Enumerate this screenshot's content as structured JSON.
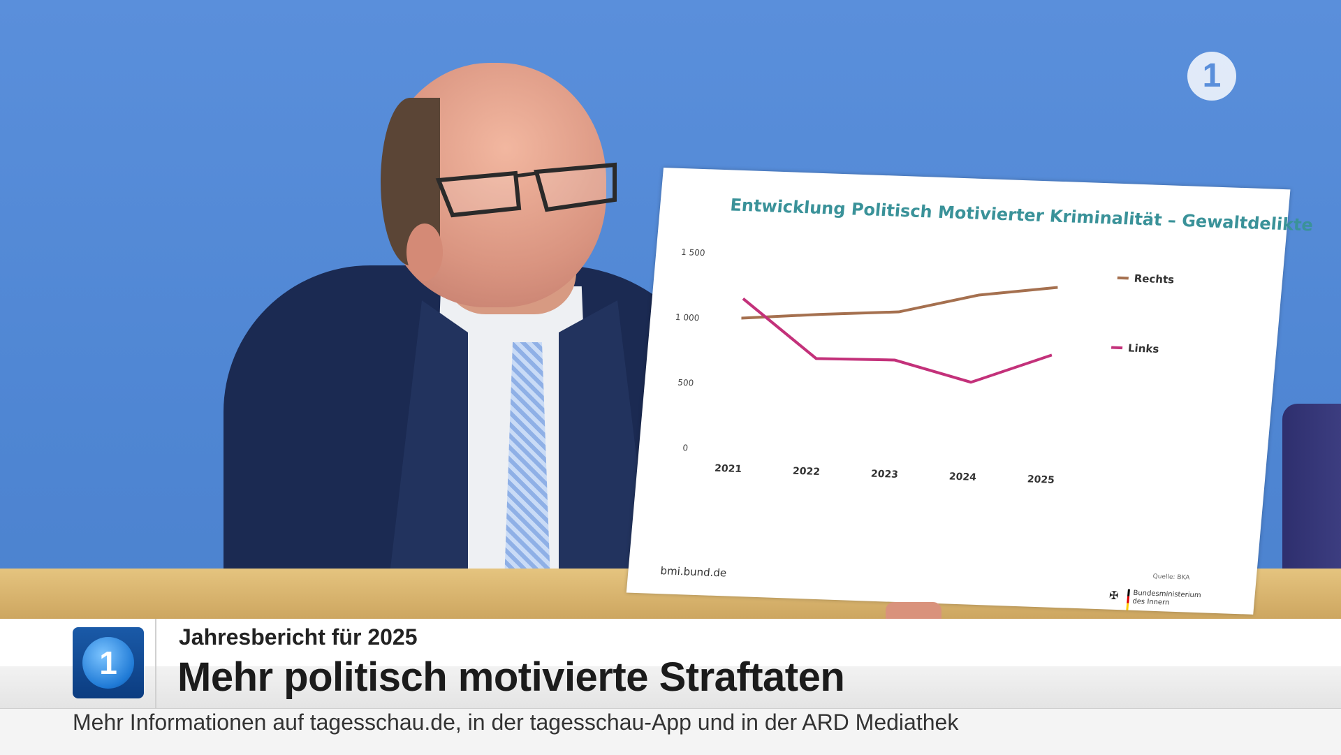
{
  "chart_data": {
    "type": "line",
    "title": "Entwicklung Politisch Motivierter Kriminalität – Gewaltdelikte",
    "x": [
      "2021",
      "2022",
      "2023",
      "2024",
      "2025"
    ],
    "ylim": [
      0,
      1500
    ],
    "yticks": [
      "1 500",
      "1 000",
      "500",
      "0"
    ],
    "grid": false,
    "legend_position": "right",
    "series": [
      {
        "name": "Rechts",
        "color": "#a5704f",
        "values": [
          1010,
          1060,
          1100,
          1250,
          1330
        ]
      },
      {
        "name": "Links",
        "color": "#c3317a",
        "values": [
          1160,
          720,
          730,
          580,
          810
        ]
      }
    ]
  },
  "board": {
    "url": "bmi.bund.de",
    "source": "Quelle: BKA",
    "ministry_line1": "Bundesministerium",
    "ministry_line2": "des Innern"
  },
  "channel_logo": "1",
  "lower_third": {
    "logo": "1",
    "kicker": "Jahresbericht für 2025",
    "headline": "Mehr politisch motivierte Straftaten",
    "ticker": "Mehr Informationen auf tagesschau.de, in der tagesschau-App und in der ARD Mediathek"
  }
}
